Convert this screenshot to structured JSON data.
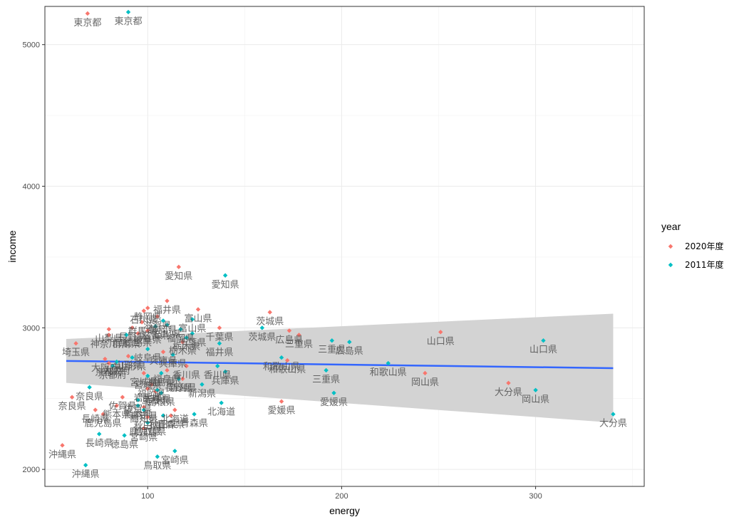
{
  "chart_data": {
    "type": "scatter",
    "xlabel": "energy",
    "ylabel": "income",
    "xlim": [
      47,
      356
    ],
    "ylim": [
      1880,
      5270
    ],
    "x_ticks": [
      100,
      200,
      300
    ],
    "y_ticks": [
      2000,
      3000,
      4000,
      5000
    ],
    "grid": true,
    "legend": {
      "title": "year",
      "placement": "right",
      "entries": [
        {
          "name": "2020年度",
          "color": "#F8766D"
        },
        {
          "name": "2011年度",
          "color": "#00BFC4"
        }
      ]
    },
    "trend_line": {
      "method": "lm",
      "color": "#3366FF",
      "band_color": "#d3d3d3",
      "x": [
        58,
        340
      ],
      "fit": [
        2766,
        2715
      ],
      "lower": [
        2611,
        2330
      ],
      "upper": [
        2921,
        3100
      ]
    },
    "series": [
      {
        "name": "2020年度",
        "color": "#F8766D",
        "points": [
          {
            "label": "東京都",
            "x": 69,
            "y": 5220
          },
          {
            "label": "愛知県",
            "x": 116,
            "y": 3430
          },
          {
            "label": "福井県",
            "x": 110,
            "y": 3190
          },
          {
            "label": "富山県",
            "x": 126,
            "y": 3130
          },
          {
            "label": "静岡県",
            "x": 100,
            "y": 3140
          },
          {
            "label": "石川県",
            "x": 98,
            "y": 3120
          },
          {
            "label": "茨城県",
            "x": 163,
            "y": 3110
          },
          {
            "label": "滋賀県",
            "x": 105,
            "y": 3080
          },
          {
            "label": "群馬県",
            "x": 97,
            "y": 3040
          },
          {
            "label": "長野県",
            "x": 92,
            "y": 3000
          },
          {
            "label": "岐阜県",
            "x": 100,
            "y": 2980
          },
          {
            "label": "千葉県",
            "x": 137,
            "y": 3000
          },
          {
            "label": "山梨県",
            "x": 80,
            "y": 2990
          },
          {
            "label": "徳島県",
            "x": 95,
            "y": 2960
          },
          {
            "label": "広島県",
            "x": 173,
            "y": 2980
          },
          {
            "label": "三重県",
            "x": 178,
            "y": 2950
          },
          {
            "label": "神奈川県",
            "x": 80,
            "y": 2950
          },
          {
            "label": "栃木県",
            "x": 118,
            "y": 2900
          },
          {
            "label": "山口県",
            "x": 251,
            "y": 2970
          },
          {
            "label": "岡山県",
            "x": 243,
            "y": 2680
          },
          {
            "label": "和歌山県",
            "x": 172,
            "y": 2770
          },
          {
            "label": "埼玉県",
            "x": 63,
            "y": 2890
          },
          {
            "label": "兵庫県",
            "x": 108,
            "y": 2830
          },
          {
            "label": "大阪府",
            "x": 78,
            "y": 2780
          },
          {
            "label": "山形県",
            "x": 90,
            "y": 2800
          },
          {
            "label": "京都府",
            "x": 80,
            "y": 2750
          },
          {
            "label": "香川県",
            "x": 120,
            "y": 2730
          },
          {
            "label": "福島県",
            "x": 110,
            "y": 2700
          },
          {
            "label": "宮城県",
            "x": 98,
            "y": 2680
          },
          {
            "label": "新潟県",
            "x": 118,
            "y": 2640
          },
          {
            "label": "福岡県",
            "x": 102,
            "y": 2600
          },
          {
            "label": "岩手県",
            "x": 100,
            "y": 2570
          },
          {
            "label": "島根県",
            "x": 104,
            "y": 2550
          },
          {
            "label": "大分県",
            "x": 286,
            "y": 2610
          },
          {
            "label": "奈良県",
            "x": 61,
            "y": 2510
          },
          {
            "label": "長崎県",
            "x": 73,
            "y": 2420
          },
          {
            "label": "佐賀県",
            "x": 87,
            "y": 2510
          },
          {
            "label": "熊本県",
            "x": 84,
            "y": 2450
          },
          {
            "label": "高知県",
            "x": 98,
            "y": 2440
          },
          {
            "label": "北海道",
            "x": 114,
            "y": 2420
          },
          {
            "label": "青森県",
            "x": 112,
            "y": 2380
          },
          {
            "label": "秋田県",
            "x": 100,
            "y": 2370
          },
          {
            "label": "鹿児島県",
            "x": 77,
            "y": 2390
          },
          {
            "label": "鳥取県",
            "x": 100,
            "y": 2330
          },
          {
            "label": "宮崎県",
            "x": 98,
            "y": 2290
          },
          {
            "label": "愛媛県",
            "x": 169,
            "y": 2480
          },
          {
            "label": "沖縄県",
            "x": 56,
            "y": 2170
          }
        ]
      },
      {
        "name": "2011年度",
        "color": "#00BFC4",
        "points": [
          {
            "label": "東京都",
            "x": 90,
            "y": 5230
          },
          {
            "label": "愛知県",
            "x": 140,
            "y": 3370
          },
          {
            "label": "茨城県",
            "x": 159,
            "y": 3000
          },
          {
            "label": "富山県",
            "x": 123,
            "y": 3060
          },
          {
            "label": "静岡県",
            "x": 108,
            "y": 3050
          },
          {
            "label": "石川県",
            "x": 110,
            "y": 3020
          },
          {
            "label": "滋賀県",
            "x": 104,
            "y": 3010
          },
          {
            "label": "福岡県",
            "x": 117,
            "y": 2990
          },
          {
            "label": "群馬県",
            "x": 89,
            "y": 2950
          },
          {
            "label": "千葉県",
            "x": 123,
            "y": 2960
          },
          {
            "label": "栃木県",
            "x": 120,
            "y": 2930
          },
          {
            "label": "三重県",
            "x": 195,
            "y": 2910
          },
          {
            "label": "広島県",
            "x": 204,
            "y": 2900
          },
          {
            "label": "福井県",
            "x": 137,
            "y": 2890
          },
          {
            "label": "山口県",
            "x": 304,
            "y": 2910
          },
          {
            "label": "岐阜県",
            "x": 100,
            "y": 2850
          },
          {
            "label": "兵庫県",
            "x": 113,
            "y": 2810
          },
          {
            "label": "和歌山県",
            "x": 169,
            "y": 2790
          },
          {
            "label": "山形県",
            "x": 92,
            "y": 2790
          },
          {
            "label": "大阪府",
            "x": 84,
            "y": 2760
          },
          {
            "label": "和歌山県",
            "x": 224,
            "y": 2750
          },
          {
            "label": "京都府",
            "x": 82,
            "y": 2730
          },
          {
            "label": "香川県",
            "x": 136,
            "y": 2730
          },
          {
            "label": "三重県",
            "x": 192,
            "y": 2700
          },
          {
            "label": "福島県",
            "x": 107,
            "y": 2680
          },
          {
            "label": "宮城県",
            "x": 100,
            "y": 2660
          },
          {
            "label": "長野県",
            "x": 116,
            "y": 2640
          },
          {
            "label": "兵庫県",
            "x": 140,
            "y": 2690
          },
          {
            "label": "新潟県",
            "x": 128,
            "y": 2600
          },
          {
            "label": "岩手県",
            "x": 105,
            "y": 2560
          },
          {
            "label": "島根県",
            "x": 107,
            "y": 2540
          },
          {
            "label": "岡山県",
            "x": 300,
            "y": 2560
          },
          {
            "label": "愛媛県",
            "x": 196,
            "y": 2540
          },
          {
            "label": "奈良県",
            "x": 70,
            "y": 2580
          },
          {
            "label": "北海道",
            "x": 138,
            "y": 2470
          },
          {
            "label": "佐賀県",
            "x": 95,
            "y": 2490
          },
          {
            "label": "熊本県",
            "x": 95,
            "y": 2450
          },
          {
            "label": "高知県",
            "x": 98,
            "y": 2420
          },
          {
            "label": "青森県",
            "x": 124,
            "y": 2390
          },
          {
            "label": "秋田県",
            "x": 108,
            "y": 2380
          },
          {
            "label": "鹿児島県",
            "x": 100,
            "y": 2330
          },
          {
            "label": "長崎県",
            "x": 75,
            "y": 2250
          },
          {
            "label": "徳島県",
            "x": 88,
            "y": 2240
          },
          {
            "label": "鳥取県",
            "x": 105,
            "y": 2090
          },
          {
            "label": "宮崎県",
            "x": 114,
            "y": 2130
          },
          {
            "label": "大分県",
            "x": 340,
            "y": 2390
          },
          {
            "label": "沖縄県",
            "x": 68,
            "y": 2030
          }
        ]
      }
    ]
  }
}
